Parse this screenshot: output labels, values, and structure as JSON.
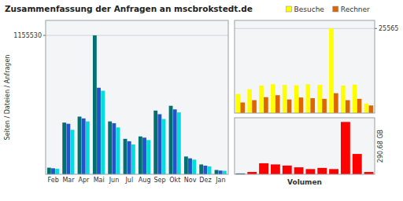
{
  "chart_data": [
    {
      "type": "bar",
      "title": "Zusammenfassung der Anfragen an mscbrokstedt.de",
      "ylabel": "Seiten / Dateien / Anfragen",
      "categories": [
        "Feb",
        "Mar",
        "Apr",
        "Mai",
        "Jun",
        "Jul",
        "Aug",
        "Sep",
        "Okt",
        "Nov",
        "Dez",
        "Jan"
      ],
      "series": [
        {
          "color": "#007070",
          "values": [
            55000,
            430000,
            480000,
            1155530,
            440000,
            295000,
            315000,
            530000,
            570000,
            148000,
            82000,
            36000
          ]
        },
        {
          "color": "#2255cc",
          "values": [
            50000,
            420000,
            465000,
            720000,
            425000,
            275000,
            305000,
            500000,
            540000,
            133000,
            72000,
            31000
          ]
        },
        {
          "color": "#00dddd",
          "values": [
            46000,
            370000,
            440000,
            695000,
            390000,
            248000,
            285000,
            460000,
            515000,
            122000,
            66000,
            29000
          ]
        }
      ],
      "ylim": [
        0,
        1280000
      ],
      "yticks": [
        1155530
      ],
      "grid": true
    },
    {
      "type": "bar",
      "categories": [
        null,
        null,
        null,
        null,
        null,
        null,
        null,
        null,
        null,
        null,
        null,
        null
      ],
      "series": [
        {
          "name": "Besuche",
          "color": "#ffff00",
          "values": [
            5800,
            7200,
            8300,
            8700,
            8500,
            8400,
            8700,
            8500,
            25565,
            8300,
            8600,
            2900
          ]
        },
        {
          "name": "Rechner",
          "color": "#dd6600",
          "values": [
            3200,
            3900,
            4800,
            5400,
            4100,
            4700,
            4500,
            4300,
            6000,
            3900,
            4300,
            2300
          ]
        }
      ],
      "ylim": [
        0,
        28000
      ],
      "yticks": [
        25565
      ],
      "grid": true,
      "legend": "top",
      "tick_labels": "y"
    },
    {
      "type": "bar",
      "xlabel": "Volumen",
      "ylabel": "290.68 GB",
      "categories": [
        null,
        null,
        null,
        null,
        null,
        null,
        null,
        null,
        null,
        null,
        null,
        null
      ],
      "values": [
        150,
        400,
        1900,
        1700,
        1500,
        1200,
        900,
        1100,
        900,
        9000,
        3500,
        400
      ],
      "colors": [
        "#005555",
        "#ff0000",
        "#ff0000",
        "#ff0000",
        "#ff0000",
        "#ff0000",
        "#ff0000",
        "#ff0000",
        "#ff0000",
        "#ff0000",
        "#ff0000",
        "#ff0000"
      ],
      "ylim": [
        0,
        9720
      ],
      "yticks": [],
      "grid": true,
      "tick_labels": false
    }
  ]
}
